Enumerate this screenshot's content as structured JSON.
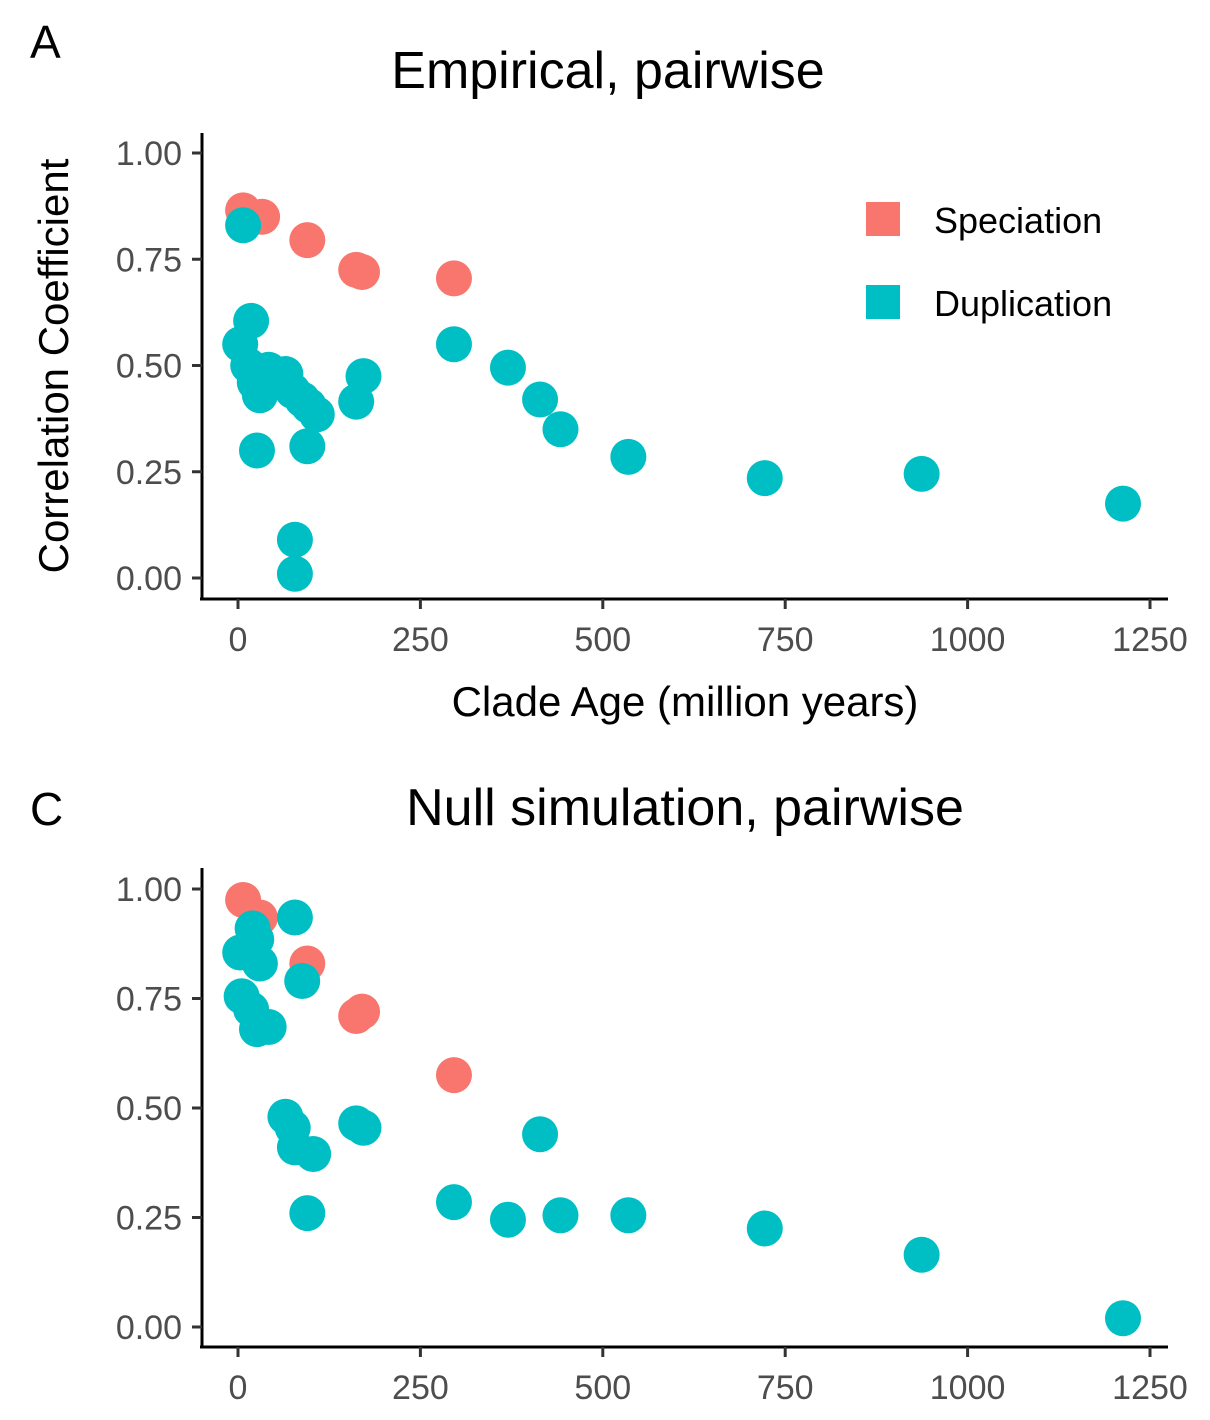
{
  "chart_data": [
    {
      "type": "scatter",
      "panel_label": "A",
      "title": "Empirical, pairwise",
      "xlabel": "Clade Age (million years)",
      "ylabel": "Correlation Coefficient",
      "xlim": [
        -25,
        1275
      ],
      "ylim": [
        -0.05,
        1.05
      ],
      "x_ticks": [
        0,
        250,
        500,
        750,
        1000,
        1250
      ],
      "x_tick_labels": [
        "0",
        "250",
        "500",
        "750",
        "1000",
        "1250"
      ],
      "y_ticks": [
        0,
        0.25,
        0.5,
        0.75,
        1.0
      ],
      "y_tick_labels": [
        "0.00",
        "0.25",
        "0.50",
        "0.75",
        "1.00"
      ],
      "grid": false,
      "legend": {
        "position": "top-right",
        "entries": [
          "Speciation",
          "Duplication"
        ]
      },
      "series": [
        {
          "name": "Speciation",
          "color": "#F8766D",
          "x": [
            7,
            33,
            95,
            162,
            170,
            296
          ],
          "y": [
            0.865,
            0.85,
            0.795,
            0.725,
            0.72,
            0.705
          ]
        },
        {
          "name": "Duplication",
          "color": "#00BFC4",
          "x": [
            7,
            3,
            18,
            14,
            23,
            30,
            42,
            48,
            65,
            75,
            88,
            97,
            108,
            26,
            95,
            78,
            78,
            162,
            172,
            296,
            370,
            414,
            442,
            535,
            722,
            937,
            1213
          ],
          "y": [
            0.83,
            0.55,
            0.605,
            0.5,
            0.46,
            0.43,
            0.49,
            0.46,
            0.48,
            0.44,
            0.42,
            0.405,
            0.385,
            0.3,
            0.31,
            0.09,
            0.01,
            0.415,
            0.475,
            0.55,
            0.495,
            0.42,
            0.35,
            0.285,
            0.235,
            0.245,
            0.175
          ]
        }
      ]
    },
    {
      "type": "scatter",
      "panel_label": "C",
      "title": "Null simulation, pairwise",
      "xlabel": "",
      "ylabel": "",
      "xlim": [
        -25,
        1275
      ],
      "ylim": [
        -0.05,
        1.05
      ],
      "x_ticks": [
        0,
        250,
        500,
        750,
        1000,
        1250
      ],
      "x_tick_labels": [
        "0",
        "250",
        "500",
        "750",
        "1000",
        "1250"
      ],
      "y_ticks": [
        0,
        0.25,
        0.5,
        0.75,
        1.0
      ],
      "y_tick_labels": [
        "0.00",
        "0.25",
        "0.50",
        "0.75",
        "1.00"
      ],
      "grid": false,
      "legend": null,
      "series": [
        {
          "name": "Speciation",
          "color": "#F8766D",
          "x": [
            7,
            30,
            95,
            162,
            170,
            296
          ],
          "y": [
            0.975,
            0.935,
            0.83,
            0.71,
            0.72,
            0.575
          ]
        },
        {
          "name": "Duplication",
          "color": "#00BFC4",
          "x": [
            3,
            20,
            25,
            14,
            5,
            18,
            26,
            42,
            30,
            78,
            88,
            65,
            75,
            78,
            103,
            95,
            162,
            172,
            296,
            370,
            414,
            442,
            535,
            722,
            937,
            1213
          ],
          "y": [
            0.855,
            0.91,
            0.885,
            0.855,
            0.755,
            0.725,
            0.68,
            0.685,
            0.83,
            0.935,
            0.79,
            0.48,
            0.455,
            0.41,
            0.395,
            0.26,
            0.465,
            0.455,
            0.285,
            0.245,
            0.44,
            0.255,
            0.255,
            0.225,
            0.165,
            0.02
          ]
        }
      ]
    }
  ]
}
